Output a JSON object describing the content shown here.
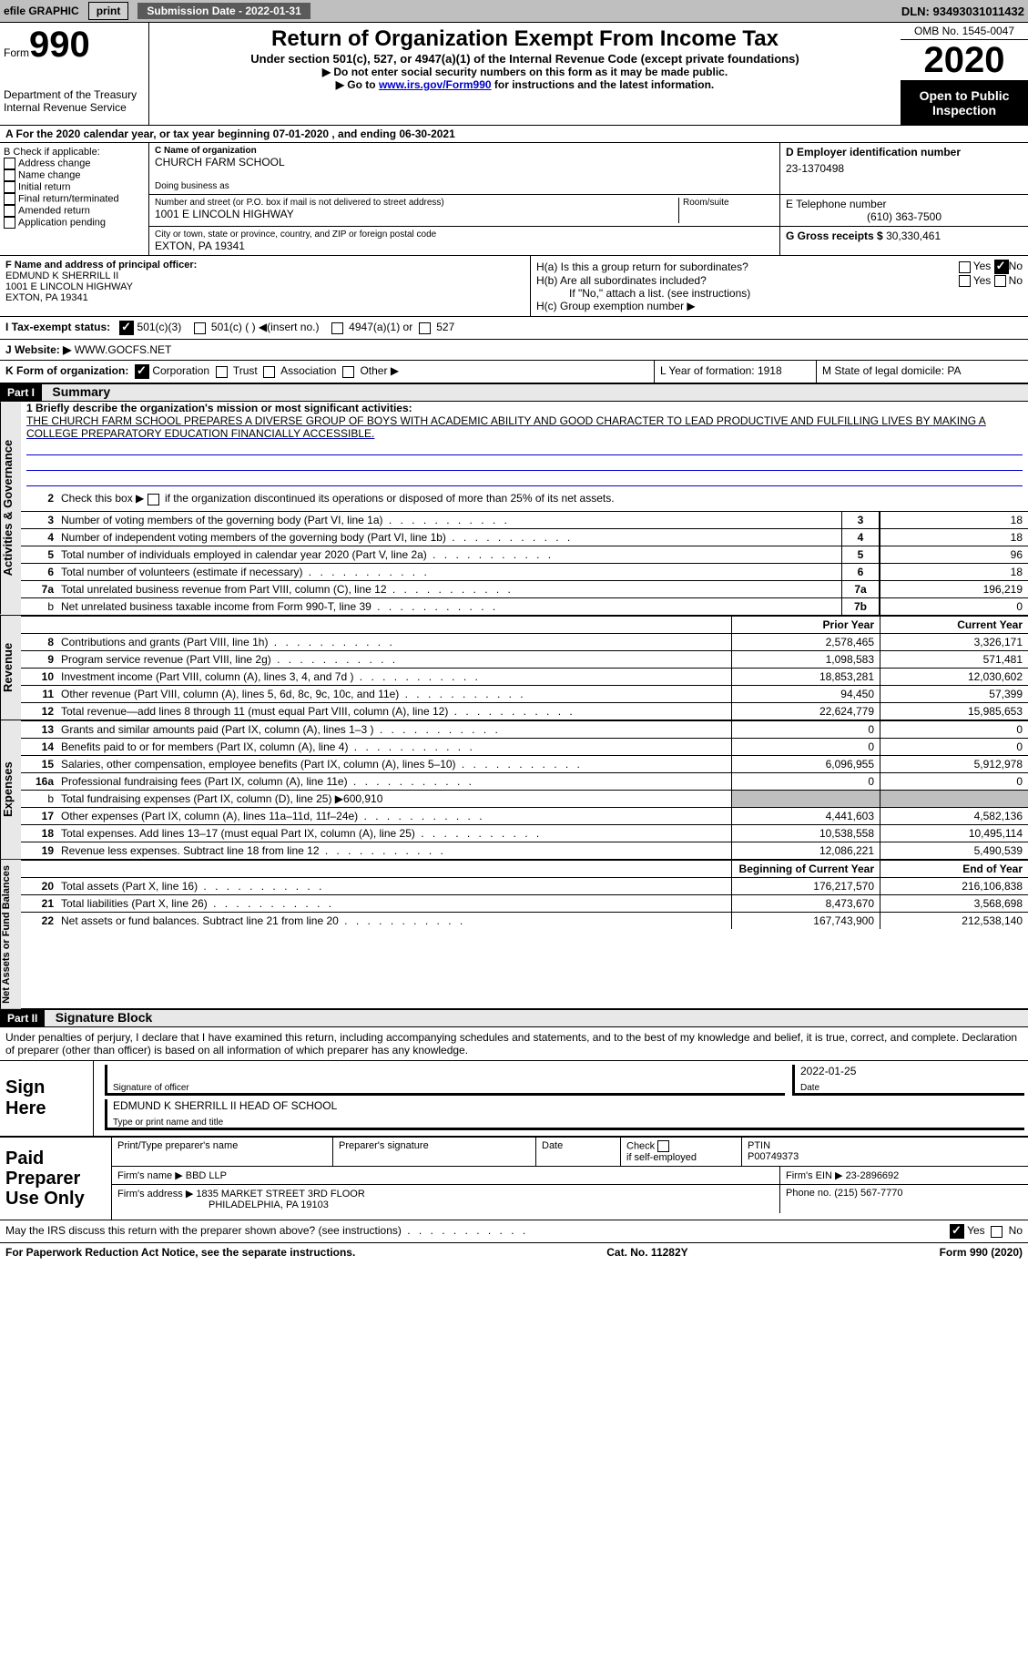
{
  "topbar": {
    "efile": "efile GRAPHIC",
    "print": "print",
    "sub_date_label": "Submission Date - 2022-01-31",
    "dln": "DLN: 93493031011432"
  },
  "header": {
    "form_word": "Form",
    "form_num": "990",
    "dept": "Department of the Treasury\nInternal Revenue Service",
    "title": "Return of Organization Exempt From Income Tax",
    "subtitle": "Under section 501(c), 527, or 4947(a)(1) of the Internal Revenue Code (except private foundations)",
    "nossn": "▶ Do not enter social security numbers on this form as it may be made public.",
    "goto": "▶ Go to ",
    "goto_link": "www.irs.gov/Form990",
    "goto_after": " for instructions and the latest information.",
    "omb": "OMB No. 1545-0047",
    "year": "2020",
    "public": "Open to Public Inspection"
  },
  "line_a": "A For the 2020 calendar year, or tax year beginning 07-01-2020    , and ending 06-30-2021",
  "checkB": {
    "label": "B Check if applicable:",
    "items": [
      "Address change",
      "Name change",
      "Initial return",
      "Final return/terminated",
      "Amended return",
      "Application pending"
    ]
  },
  "org": {
    "name_label": "C Name of organization",
    "name": "CHURCH FARM SCHOOL",
    "dba_label": "Doing business as",
    "addr_label": "Number and street (or P.O. box if mail is not delivered to street address)",
    "room_label": "Room/suite",
    "addr": "1001 E LINCOLN HIGHWAY",
    "city_label": "City or town, state or province, country, and ZIP or foreign postal code",
    "city": "EXTON, PA  19341"
  },
  "right": {
    "ein_label": "D Employer identification number",
    "ein": "23-1370498",
    "tel_label": "E Telephone number",
    "tel": "(610) 363-7500",
    "gross_label": "G Gross receipts $ ",
    "gross": "30,330,461"
  },
  "officer": {
    "label": "F  Name and address of principal officer:",
    "name": "EDMUND K SHERRILL II",
    "addr1": "1001 E LINCOLN HIGHWAY",
    "addr2": "EXTON, PA  19341"
  },
  "h_section": {
    "ha": "H(a)  Is this a group return for subordinates?",
    "hb": "H(b)  Are all subordinates included?",
    "hb_note": "If \"No,\" attach a list. (see instructions)",
    "hc": "H(c)  Group exemption number ▶",
    "yes": "Yes",
    "no": "No"
  },
  "status": {
    "label": "I   Tax-exempt status:",
    "c3": "501(c)(3)",
    "c": "501(c) (  ) ◀(insert no.)",
    "a1": "4947(a)(1) or",
    "s527": "527"
  },
  "website": {
    "label": "J  Website: ▶  ",
    "val": "WWW.GOCFS.NET"
  },
  "form_org": {
    "label": "K Form of organization:",
    "corp": "Corporation",
    "trust": "Trust",
    "assoc": "Association",
    "other": "Other ▶"
  },
  "year_state": {
    "l": "L Year of formation: 1918",
    "m": "M State of legal domicile: PA"
  },
  "part1": {
    "part": "Part I",
    "title": "Summary",
    "mission_label": "1  Briefly describe the organization's mission or most significant activities:",
    "mission": "THE CHURCH FARM SCHOOL PREPARES A DIVERSE GROUP OF BOYS WITH ACADEMIC ABILITY AND GOOD CHARACTER TO LEAD PRODUCTIVE AND FULFILLING LIVES BY MAKING A COLLEGE PREPARATORY EDUCATION FINANCIALLY ACCESSIBLE.",
    "line2": "Check this box ▶  if the organization discontinued its operations or disposed of more than 25% of its net assets.",
    "side_gov": "Activities & Governance",
    "side_rev": "Revenue",
    "side_exp": "Expenses",
    "side_net": "Net Assets or Fund Balances",
    "prior_year": "Prior Year",
    "current_year": "Current Year",
    "beg_year": "Beginning of Current Year",
    "end_year": "End of Year"
  },
  "gov_lines": [
    {
      "n": "3",
      "t": "Number of voting members of the governing body (Part VI, line 1a)",
      "ref": "3",
      "v": "18"
    },
    {
      "n": "4",
      "t": "Number of independent voting members of the governing body (Part VI, line 1b)",
      "ref": "4",
      "v": "18"
    },
    {
      "n": "5",
      "t": "Total number of individuals employed in calendar year 2020 (Part V, line 2a)",
      "ref": "5",
      "v": "96"
    },
    {
      "n": "6",
      "t": "Total number of volunteers (estimate if necessary)",
      "ref": "6",
      "v": "18"
    },
    {
      "n": "7a",
      "t": "Total unrelated business revenue from Part VIII, column (C), line 12",
      "ref": "7a",
      "v": "196,219"
    },
    {
      "n": "b",
      "t": "Net unrelated business taxable income from Form 990-T, line 39",
      "ref": "7b",
      "v": "0",
      "sub": true
    }
  ],
  "rev_lines": [
    {
      "n": "8",
      "t": "Contributions and grants (Part VIII, line 1h)",
      "p": "2,578,465",
      "c": "3,326,171"
    },
    {
      "n": "9",
      "t": "Program service revenue (Part VIII, line 2g)",
      "p": "1,098,583",
      "c": "571,481"
    },
    {
      "n": "10",
      "t": "Investment income (Part VIII, column (A), lines 3, 4, and 7d )",
      "p": "18,853,281",
      "c": "12,030,602"
    },
    {
      "n": "11",
      "t": "Other revenue (Part VIII, column (A), lines 5, 6d, 8c, 9c, 10c, and 11e)",
      "p": "94,450",
      "c": "57,399"
    },
    {
      "n": "12",
      "t": "Total revenue—add lines 8 through 11 (must equal Part VIII, column (A), line 12)",
      "p": "22,624,779",
      "c": "15,985,653"
    }
  ],
  "exp_lines": [
    {
      "n": "13",
      "t": "Grants and similar amounts paid (Part IX, column (A), lines 1–3 )",
      "p": "0",
      "c": "0"
    },
    {
      "n": "14",
      "t": "Benefits paid to or for members (Part IX, column (A), line 4)",
      "p": "0",
      "c": "0"
    },
    {
      "n": "15",
      "t": "Salaries, other compensation, employee benefits (Part IX, column (A), lines 5–10)",
      "p": "6,096,955",
      "c": "5,912,978"
    },
    {
      "n": "16a",
      "t": "Professional fundraising fees (Part IX, column (A), line 11e)",
      "p": "0",
      "c": "0"
    },
    {
      "n": "b",
      "t": "Total fundraising expenses (Part IX, column (D), line 25) ▶600,910",
      "shaded": true,
      "sub": true
    },
    {
      "n": "17",
      "t": "Other expenses (Part IX, column (A), lines 11a–11d, 11f–24e)",
      "p": "4,441,603",
      "c": "4,582,136"
    },
    {
      "n": "18",
      "t": "Total expenses. Add lines 13–17 (must equal Part IX, column (A), line 25)",
      "p": "10,538,558",
      "c": "10,495,114"
    },
    {
      "n": "19",
      "t": "Revenue less expenses. Subtract line 18 from line 12",
      "p": "12,086,221",
      "c": "5,490,539"
    }
  ],
  "net_lines": [
    {
      "n": "20",
      "t": "Total assets (Part X, line 16)",
      "p": "176,217,570",
      "c": "216,106,838"
    },
    {
      "n": "21",
      "t": "Total liabilities (Part X, line 26)",
      "p": "8,473,670",
      "c": "3,568,698"
    },
    {
      "n": "22",
      "t": "Net assets or fund balances. Subtract line 21 from line 20",
      "p": "167,743,900",
      "c": "212,538,140"
    }
  ],
  "part2": {
    "part": "Part II",
    "title": "Signature Block",
    "penalty": "Under penalties of perjury, I declare that I have examined this return, including accompanying schedules and statements, and to the best of my knowledge and belief, it is true, correct, and complete. Declaration of preparer (other than officer) is based on all information of which preparer has any knowledge.",
    "sign_here": "Sign Here",
    "sig_officer": "Signature of officer",
    "sig_date_label": "Date",
    "sig_date": "2022-01-25",
    "sig_name": "EDMUND K SHERRILL II HEAD OF SCHOOL",
    "sig_type": "Type or print name and title"
  },
  "paid": {
    "label": "Paid Preparer Use Only",
    "h1": "Print/Type preparer's name",
    "h2": "Preparer's signature",
    "h3": "Date",
    "h4_a": "Check",
    "h4_b": "if self-employed",
    "h5": "PTIN",
    "ptin": "P00749373",
    "firm_name_label": "Firm's name     ▶",
    "firm_name": "BBD LLP",
    "firm_ein_label": "Firm's EIN ▶",
    "firm_ein": "23-2896692",
    "firm_addr_label": "Firm's address ▶",
    "firm_addr1": "1835 MARKET STREET 3RD FLOOR",
    "firm_addr2": "PHILADELPHIA, PA  19103",
    "phone_label": "Phone no.",
    "phone": "(215) 567-7770"
  },
  "discuss": {
    "text": "May the IRS discuss this return with the preparer shown above? (see instructions)",
    "yes": "Yes",
    "no": "No"
  },
  "footer": {
    "pra": "For Paperwork Reduction Act Notice, see the separate instructions.",
    "cat": "Cat. No. 11282Y",
    "form": "Form 990 (2020)"
  }
}
